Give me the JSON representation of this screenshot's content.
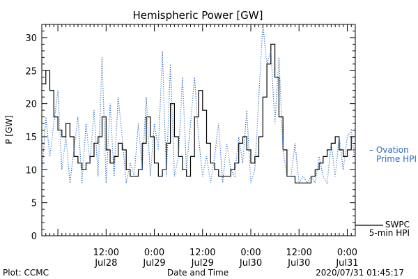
{
  "page": {
    "footer_left": "Plot: CCMC",
    "footer_right": "2020/07/31 01:45:17"
  },
  "chart_data": {
    "type": "line",
    "title": "Hemispheric Power [GW]",
    "xlabel": "Date and Time",
    "ylabel": "P [GW]",
    "ylim": [
      0,
      32
    ],
    "xlim": [
      "2020-07-27T20:00",
      "2020-07-31T02:00"
    ],
    "yticks": [
      0,
      5,
      10,
      15,
      20,
      25,
      30
    ],
    "xticks": [
      {
        "x": "2020-07-28T12:00",
        "time": "12:00",
        "date": "Jul28"
      },
      {
        "x": "2020-07-29T00:00",
        "time": "0:00",
        "date": "Jul29"
      },
      {
        "x": "2020-07-29T12:00",
        "time": "12:00",
        "date": "Jul29"
      },
      {
        "x": "2020-07-30T00:00",
        "time": "0:00",
        "date": "Jul30"
      },
      {
        "x": "2020-07-30T12:00",
        "time": "12:00",
        "date": "Jul30"
      },
      {
        "x": "2020-07-31T00:00",
        "time": "0:00",
        "date": "Jul31"
      }
    ],
    "grid": false,
    "colors": {
      "swpc": "#000000",
      "ovation": "#2d6cc0"
    },
    "series": [
      {
        "name": "SWPC 5-min HPI",
        "label_lines": [
          "SWPC",
          "5-min HPI"
        ],
        "style": "solid-step",
        "color": "#000000",
        "x": [
          "2020-07-27T20:00",
          "2020-07-27T21:00",
          "2020-07-27T22:00",
          "2020-07-27T23:00",
          "2020-07-28T00:00",
          "2020-07-28T01:00",
          "2020-07-28T02:00",
          "2020-07-28T03:00",
          "2020-07-28T04:00",
          "2020-07-28T05:00",
          "2020-07-28T06:00",
          "2020-07-28T07:00",
          "2020-07-28T08:00",
          "2020-07-28T09:00",
          "2020-07-28T10:00",
          "2020-07-28T11:00",
          "2020-07-28T12:00",
          "2020-07-28T13:00",
          "2020-07-28T14:00",
          "2020-07-28T15:00",
          "2020-07-28T16:00",
          "2020-07-28T17:00",
          "2020-07-28T18:00",
          "2020-07-28T19:00",
          "2020-07-28T20:00",
          "2020-07-28T21:00",
          "2020-07-28T22:00",
          "2020-07-28T23:00",
          "2020-07-29T00:00",
          "2020-07-29T01:00",
          "2020-07-29T02:00",
          "2020-07-29T03:00",
          "2020-07-29T04:00",
          "2020-07-29T05:00",
          "2020-07-29T06:00",
          "2020-07-29T07:00",
          "2020-07-29T08:00",
          "2020-07-29T09:00",
          "2020-07-29T10:00",
          "2020-07-29T11:00",
          "2020-07-29T12:00",
          "2020-07-29T13:00",
          "2020-07-29T14:00",
          "2020-07-29T15:00",
          "2020-07-29T16:00",
          "2020-07-29T17:00",
          "2020-07-29T18:00",
          "2020-07-29T19:00",
          "2020-07-29T20:00",
          "2020-07-29T21:00",
          "2020-07-29T22:00",
          "2020-07-29T23:00",
          "2020-07-30T00:00",
          "2020-07-30T01:00",
          "2020-07-30T02:00",
          "2020-07-30T03:00",
          "2020-07-30T04:00",
          "2020-07-30T05:00",
          "2020-07-30T06:00",
          "2020-07-30T07:00",
          "2020-07-30T08:00",
          "2020-07-30T09:00",
          "2020-07-30T10:00",
          "2020-07-30T11:00",
          "2020-07-30T12:00",
          "2020-07-30T13:00",
          "2020-07-30T14:00",
          "2020-07-30T15:00",
          "2020-07-30T16:00",
          "2020-07-30T17:00",
          "2020-07-30T18:00",
          "2020-07-30T19:00",
          "2020-07-30T20:00",
          "2020-07-30T21:00",
          "2020-07-30T22:00",
          "2020-07-30T23:00",
          "2020-07-31T00:00",
          "2020-07-31T01:00",
          "2020-07-31T01:45"
        ],
        "values": [
          23,
          25,
          22,
          18,
          16,
          15,
          17,
          15,
          12,
          11,
          10,
          11,
          12,
          14,
          15,
          18,
          13,
          11,
          12,
          14,
          13,
          10,
          9,
          9,
          10,
          14,
          18,
          15,
          11,
          9,
          10,
          14,
          20,
          15,
          12,
          10,
          9,
          12,
          18,
          22,
          19,
          14,
          11,
          10,
          9,
          9,
          9,
          10,
          11,
          14,
          15,
          13,
          11,
          12,
          15,
          21,
          26,
          29,
          24,
          18,
          13,
          9,
          9,
          8,
          8,
          8,
          8,
          9,
          10,
          11,
          12,
          13,
          14,
          15,
          13,
          12,
          13,
          15,
          15
        ]
      },
      {
        "name": "Ovation Prime HPI",
        "label_lines": [
          "– Ovation",
          "Prime HPI"
        ],
        "style": "dotted",
        "color": "#2d6cc0",
        "x": [
          "2020-07-27T20:00",
          "2020-07-27T21:00",
          "2020-07-27T22:00",
          "2020-07-27T23:00",
          "2020-07-28T00:00",
          "2020-07-28T01:00",
          "2020-07-28T02:00",
          "2020-07-28T03:00",
          "2020-07-28T04:00",
          "2020-07-28T05:00",
          "2020-07-28T06:00",
          "2020-07-28T07:00",
          "2020-07-28T08:00",
          "2020-07-28T09:00",
          "2020-07-28T10:00",
          "2020-07-28T11:00",
          "2020-07-28T12:00",
          "2020-07-28T13:00",
          "2020-07-28T14:00",
          "2020-07-28T15:00",
          "2020-07-28T16:00",
          "2020-07-28T17:00",
          "2020-07-28T18:00",
          "2020-07-28T19:00",
          "2020-07-28T20:00",
          "2020-07-28T21:00",
          "2020-07-28T22:00",
          "2020-07-28T23:00",
          "2020-07-29T00:00",
          "2020-07-29T01:00",
          "2020-07-29T02:00",
          "2020-07-29T03:00",
          "2020-07-29T04:00",
          "2020-07-29T05:00",
          "2020-07-29T06:00",
          "2020-07-29T07:00",
          "2020-07-29T08:00",
          "2020-07-29T09:00",
          "2020-07-29T10:00",
          "2020-07-29T11:00",
          "2020-07-29T12:00",
          "2020-07-29T13:00",
          "2020-07-29T14:00",
          "2020-07-29T15:00",
          "2020-07-29T16:00",
          "2020-07-29T17:00",
          "2020-07-29T18:00",
          "2020-07-29T19:00",
          "2020-07-29T20:00",
          "2020-07-29T21:00",
          "2020-07-29T22:00",
          "2020-07-29T23:00",
          "2020-07-30T00:00",
          "2020-07-30T01:00",
          "2020-07-30T02:00",
          "2020-07-30T03:00",
          "2020-07-30T04:00",
          "2020-07-30T05:00",
          "2020-07-30T06:00",
          "2020-07-30T07:00",
          "2020-07-30T08:00",
          "2020-07-30T09:00",
          "2020-07-30T10:00",
          "2020-07-30T11:00",
          "2020-07-30T12:00",
          "2020-07-30T13:00",
          "2020-07-30T14:00",
          "2020-07-30T15:00",
          "2020-07-30T16:00",
          "2020-07-30T17:00",
          "2020-07-30T18:00",
          "2020-07-30T19:00",
          "2020-07-30T20:00",
          "2020-07-30T21:00",
          "2020-07-30T22:00",
          "2020-07-30T23:00",
          "2020-07-31T00:00",
          "2020-07-31T01:00",
          "2020-07-31T01:45"
        ],
        "values": [
          9,
          18,
          12,
          17,
          22,
          10,
          15,
          8,
          13,
          18,
          8,
          17,
          11,
          19,
          9,
          27,
          8,
          20,
          9,
          21,
          15,
          8,
          11,
          9,
          17,
          10,
          21,
          9,
          17,
          13,
          28,
          9,
          26,
          9,
          12,
          24,
          10,
          17,
          24,
          15,
          9,
          12,
          8,
          12,
          17,
          8,
          14,
          10,
          9,
          15,
          11,
          19,
          8,
          10,
          21,
          32,
          26,
          28,
          17,
          27,
          13,
          9,
          9,
          14,
          8,
          9,
          8,
          9,
          8,
          12,
          9,
          8,
          14,
          9,
          15,
          10,
          15,
          16,
          12
        ]
      }
    ]
  }
}
